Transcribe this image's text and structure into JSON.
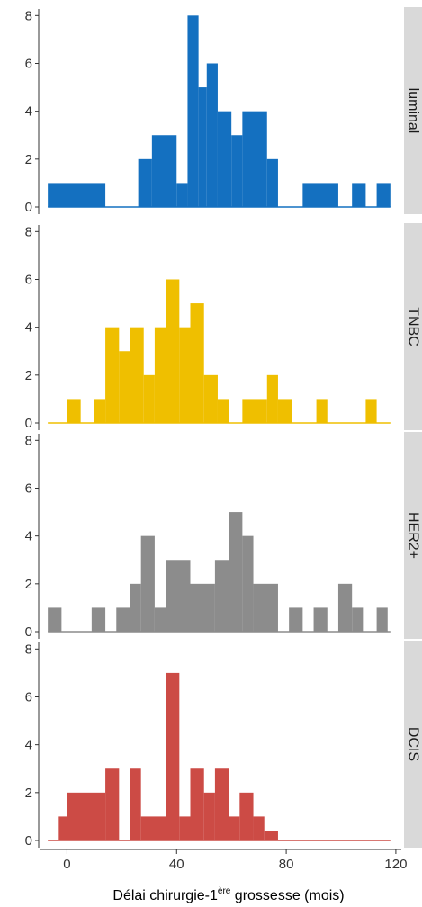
{
  "chart_data": {
    "type": "bar",
    "title": "",
    "xlabel": "Délai chirurgie-1ère grossesse (mois)",
    "xlabel_parts": {
      "before": "Délai chirurgie-1",
      "superscript": "ère",
      "after": " grossesse (mois)"
    },
    "ylabel": "",
    "xlim": [
      -10,
      122
    ],
    "ylim": [
      0,
      8.2
    ],
    "x_ticks": [
      0,
      40,
      80,
      120
    ],
    "y_ticks": [
      0,
      2,
      4,
      6,
      8
    ],
    "bin_width": 5,
    "grid": false,
    "legend": "none",
    "panels": [
      {
        "name": "luminal",
        "color": "#1470c0",
        "bins": [
          {
            "x0": -7,
            "x1": 14,
            "y": 1
          },
          {
            "x0": 26,
            "x1": 31,
            "y": 2
          },
          {
            "x0": 31,
            "x1": 40,
            "y": 3
          },
          {
            "x0": 40,
            "x1": 44,
            "y": 1
          },
          {
            "x0": 44,
            "x1": 48,
            "y": 8
          },
          {
            "x0": 48,
            "x1": 51,
            "y": 5
          },
          {
            "x0": 51,
            "x1": 55,
            "y": 6
          },
          {
            "x0": 55,
            "x1": 60,
            "y": 4
          },
          {
            "x0": 60,
            "x1": 64,
            "y": 3
          },
          {
            "x0": 64,
            "x1": 73,
            "y": 4
          },
          {
            "x0": 73,
            "x1": 77,
            "y": 2
          },
          {
            "x0": 86,
            "x1": 99,
            "y": 1
          },
          {
            "x0": 104,
            "x1": 109,
            "y": 1
          },
          {
            "x0": 113,
            "x1": 118,
            "y": 1
          }
        ]
      },
      {
        "name": "TNBC",
        "color": "#efbf00",
        "bins": [
          {
            "x0": 0,
            "x1": 5,
            "y": 1
          },
          {
            "x0": 10,
            "x1": 14,
            "y": 1
          },
          {
            "x0": 14,
            "x1": 19,
            "y": 4
          },
          {
            "x0": 19,
            "x1": 23,
            "y": 3
          },
          {
            "x0": 23,
            "x1": 28,
            "y": 4
          },
          {
            "x0": 28,
            "x1": 32,
            "y": 2
          },
          {
            "x0": 32,
            "x1": 36,
            "y": 4
          },
          {
            "x0": 36,
            "x1": 41,
            "y": 6
          },
          {
            "x0": 41,
            "x1": 45,
            "y": 4
          },
          {
            "x0": 45,
            "x1": 50,
            "y": 5
          },
          {
            "x0": 50,
            "x1": 55,
            "y": 2
          },
          {
            "x0": 55,
            "x1": 59,
            "y": 1
          },
          {
            "x0": 64,
            "x1": 73,
            "y": 1
          },
          {
            "x0": 73,
            "x1": 77,
            "y": 2
          },
          {
            "x0": 77,
            "x1": 82,
            "y": 1
          },
          {
            "x0": 91,
            "x1": 95,
            "y": 1
          },
          {
            "x0": 109,
            "x1": 113,
            "y": 1
          }
        ]
      },
      {
        "name": "HER2+",
        "color": "#8c8c8c",
        "bins": [
          {
            "x0": -7,
            "x1": -2,
            "y": 1
          },
          {
            "x0": 9,
            "x1": 14,
            "y": 1
          },
          {
            "x0": 18,
            "x1": 23,
            "y": 1
          },
          {
            "x0": 23,
            "x1": 27,
            "y": 2
          },
          {
            "x0": 27,
            "x1": 32,
            "y": 4
          },
          {
            "x0": 32,
            "x1": 36,
            "y": 1
          },
          {
            "x0": 36,
            "x1": 45,
            "y": 3
          },
          {
            "x0": 45,
            "x1": 54,
            "y": 2
          },
          {
            "x0": 54,
            "x1": 59,
            "y": 3
          },
          {
            "x0": 59,
            "x1": 64,
            "y": 5
          },
          {
            "x0": 64,
            "x1": 68,
            "y": 4
          },
          {
            "x0": 68,
            "x1": 77,
            "y": 2
          },
          {
            "x0": 81,
            "x1": 86,
            "y": 1
          },
          {
            "x0": 90,
            "x1": 95,
            "y": 1
          },
          {
            "x0": 99,
            "x1": 104,
            "y": 2
          },
          {
            "x0": 104,
            "x1": 108,
            "y": 1
          },
          {
            "x0": 113,
            "x1": 117,
            "y": 1
          }
        ]
      },
      {
        "name": "DCIS",
        "color": "#cc4b45",
        "bins": [
          {
            "x0": -3,
            "x1": 0,
            "y": 1
          },
          {
            "x0": 0,
            "x1": 14,
            "y": 2
          },
          {
            "x0": 14,
            "x1": 19,
            "y": 3
          },
          {
            "x0": 23,
            "x1": 27,
            "y": 3
          },
          {
            "x0": 27,
            "x1": 36,
            "y": 1
          },
          {
            "x0": 36,
            "x1": 41,
            "y": 7
          },
          {
            "x0": 41,
            "x1": 45,
            "y": 1
          },
          {
            "x0": 45,
            "x1": 50,
            "y": 3
          },
          {
            "x0": 50,
            "x1": 54,
            "y": 2
          },
          {
            "x0": 54,
            "x1": 59,
            "y": 3
          },
          {
            "x0": 59,
            "x1": 63,
            "y": 1
          },
          {
            "x0": 63,
            "x1": 68,
            "y": 2
          },
          {
            "x0": 68,
            "x1": 72,
            "y": 1
          },
          {
            "x0": 72,
            "x1": 77,
            "y": 0.4
          }
        ]
      }
    ]
  }
}
